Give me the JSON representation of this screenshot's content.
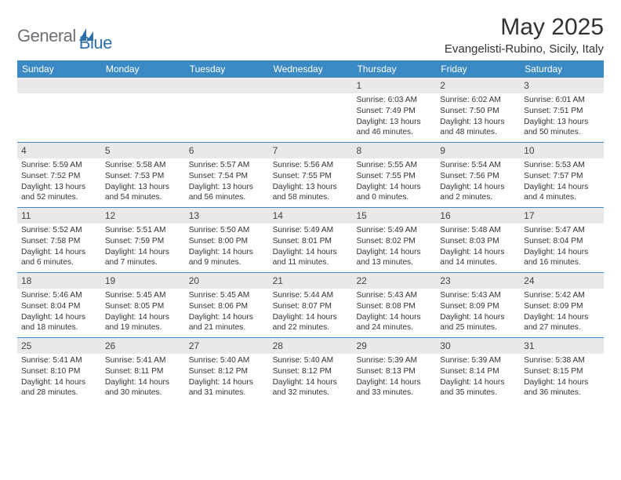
{
  "brand": {
    "part1": "General",
    "part2": "Blue"
  },
  "title": "May 2025",
  "location": "Evangelisti-Rubino, Sicily, Italy",
  "colors": {
    "header_bar": "#3b8ac4",
    "gray_strip": "#e9e9e9",
    "rule": "#3b8ac4",
    "logo_gray": "#6c7074",
    "logo_blue": "#2c6faa"
  },
  "dow": [
    "Sunday",
    "Monday",
    "Tuesday",
    "Wednesday",
    "Thursday",
    "Friday",
    "Saturday"
  ],
  "weeks": [
    [
      {
        "n": "",
        "sunrise": "",
        "sunset": "",
        "daylight": ""
      },
      {
        "n": "",
        "sunrise": "",
        "sunset": "",
        "daylight": ""
      },
      {
        "n": "",
        "sunrise": "",
        "sunset": "",
        "daylight": ""
      },
      {
        "n": "",
        "sunrise": "",
        "sunset": "",
        "daylight": ""
      },
      {
        "n": "1",
        "sunrise": "Sunrise: 6:03 AM",
        "sunset": "Sunset: 7:49 PM",
        "daylight": "Daylight: 13 hours and 46 minutes."
      },
      {
        "n": "2",
        "sunrise": "Sunrise: 6:02 AM",
        "sunset": "Sunset: 7:50 PM",
        "daylight": "Daylight: 13 hours and 48 minutes."
      },
      {
        "n": "3",
        "sunrise": "Sunrise: 6:01 AM",
        "sunset": "Sunset: 7:51 PM",
        "daylight": "Daylight: 13 hours and 50 minutes."
      }
    ],
    [
      {
        "n": "4",
        "sunrise": "Sunrise: 5:59 AM",
        "sunset": "Sunset: 7:52 PM",
        "daylight": "Daylight: 13 hours and 52 minutes."
      },
      {
        "n": "5",
        "sunrise": "Sunrise: 5:58 AM",
        "sunset": "Sunset: 7:53 PM",
        "daylight": "Daylight: 13 hours and 54 minutes."
      },
      {
        "n": "6",
        "sunrise": "Sunrise: 5:57 AM",
        "sunset": "Sunset: 7:54 PM",
        "daylight": "Daylight: 13 hours and 56 minutes."
      },
      {
        "n": "7",
        "sunrise": "Sunrise: 5:56 AM",
        "sunset": "Sunset: 7:55 PM",
        "daylight": "Daylight: 13 hours and 58 minutes."
      },
      {
        "n": "8",
        "sunrise": "Sunrise: 5:55 AM",
        "sunset": "Sunset: 7:55 PM",
        "daylight": "Daylight: 14 hours and 0 minutes."
      },
      {
        "n": "9",
        "sunrise": "Sunrise: 5:54 AM",
        "sunset": "Sunset: 7:56 PM",
        "daylight": "Daylight: 14 hours and 2 minutes."
      },
      {
        "n": "10",
        "sunrise": "Sunrise: 5:53 AM",
        "sunset": "Sunset: 7:57 PM",
        "daylight": "Daylight: 14 hours and 4 minutes."
      }
    ],
    [
      {
        "n": "11",
        "sunrise": "Sunrise: 5:52 AM",
        "sunset": "Sunset: 7:58 PM",
        "daylight": "Daylight: 14 hours and 6 minutes."
      },
      {
        "n": "12",
        "sunrise": "Sunrise: 5:51 AM",
        "sunset": "Sunset: 7:59 PM",
        "daylight": "Daylight: 14 hours and 7 minutes."
      },
      {
        "n": "13",
        "sunrise": "Sunrise: 5:50 AM",
        "sunset": "Sunset: 8:00 PM",
        "daylight": "Daylight: 14 hours and 9 minutes."
      },
      {
        "n": "14",
        "sunrise": "Sunrise: 5:49 AM",
        "sunset": "Sunset: 8:01 PM",
        "daylight": "Daylight: 14 hours and 11 minutes."
      },
      {
        "n": "15",
        "sunrise": "Sunrise: 5:49 AM",
        "sunset": "Sunset: 8:02 PM",
        "daylight": "Daylight: 14 hours and 13 minutes."
      },
      {
        "n": "16",
        "sunrise": "Sunrise: 5:48 AM",
        "sunset": "Sunset: 8:03 PM",
        "daylight": "Daylight: 14 hours and 14 minutes."
      },
      {
        "n": "17",
        "sunrise": "Sunrise: 5:47 AM",
        "sunset": "Sunset: 8:04 PM",
        "daylight": "Daylight: 14 hours and 16 minutes."
      }
    ],
    [
      {
        "n": "18",
        "sunrise": "Sunrise: 5:46 AM",
        "sunset": "Sunset: 8:04 PM",
        "daylight": "Daylight: 14 hours and 18 minutes."
      },
      {
        "n": "19",
        "sunrise": "Sunrise: 5:45 AM",
        "sunset": "Sunset: 8:05 PM",
        "daylight": "Daylight: 14 hours and 19 minutes."
      },
      {
        "n": "20",
        "sunrise": "Sunrise: 5:45 AM",
        "sunset": "Sunset: 8:06 PM",
        "daylight": "Daylight: 14 hours and 21 minutes."
      },
      {
        "n": "21",
        "sunrise": "Sunrise: 5:44 AM",
        "sunset": "Sunset: 8:07 PM",
        "daylight": "Daylight: 14 hours and 22 minutes."
      },
      {
        "n": "22",
        "sunrise": "Sunrise: 5:43 AM",
        "sunset": "Sunset: 8:08 PM",
        "daylight": "Daylight: 14 hours and 24 minutes."
      },
      {
        "n": "23",
        "sunrise": "Sunrise: 5:43 AM",
        "sunset": "Sunset: 8:09 PM",
        "daylight": "Daylight: 14 hours and 25 minutes."
      },
      {
        "n": "24",
        "sunrise": "Sunrise: 5:42 AM",
        "sunset": "Sunset: 8:09 PM",
        "daylight": "Daylight: 14 hours and 27 minutes."
      }
    ],
    [
      {
        "n": "25",
        "sunrise": "Sunrise: 5:41 AM",
        "sunset": "Sunset: 8:10 PM",
        "daylight": "Daylight: 14 hours and 28 minutes."
      },
      {
        "n": "26",
        "sunrise": "Sunrise: 5:41 AM",
        "sunset": "Sunset: 8:11 PM",
        "daylight": "Daylight: 14 hours and 30 minutes."
      },
      {
        "n": "27",
        "sunrise": "Sunrise: 5:40 AM",
        "sunset": "Sunset: 8:12 PM",
        "daylight": "Daylight: 14 hours and 31 minutes."
      },
      {
        "n": "28",
        "sunrise": "Sunrise: 5:40 AM",
        "sunset": "Sunset: 8:12 PM",
        "daylight": "Daylight: 14 hours and 32 minutes."
      },
      {
        "n": "29",
        "sunrise": "Sunrise: 5:39 AM",
        "sunset": "Sunset: 8:13 PM",
        "daylight": "Daylight: 14 hours and 33 minutes."
      },
      {
        "n": "30",
        "sunrise": "Sunrise: 5:39 AM",
        "sunset": "Sunset: 8:14 PM",
        "daylight": "Daylight: 14 hours and 35 minutes."
      },
      {
        "n": "31",
        "sunrise": "Sunrise: 5:38 AM",
        "sunset": "Sunset: 8:15 PM",
        "daylight": "Daylight: 14 hours and 36 minutes."
      }
    ]
  ]
}
